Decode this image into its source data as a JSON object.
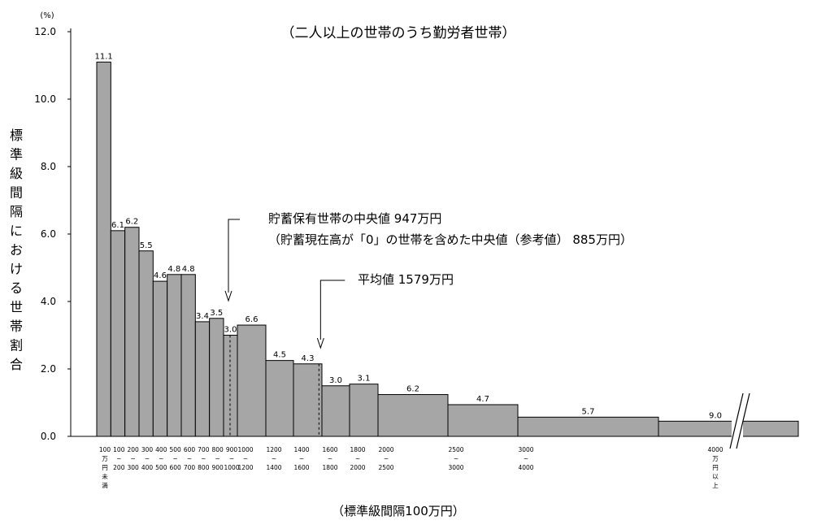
{
  "chart_data": {
    "type": "bar",
    "title": "（二人以上の世帯のうち勤労者世帯）",
    "ylabel": "標準級間隔における世帯割合",
    "yunit": "(%)",
    "xlabel": "（標準級間隔100万円）",
    "ylim": [
      0,
      12
    ],
    "yticks": [
      "0.0",
      "2.0",
      "4.0",
      "6.0",
      "8.0",
      "10.0",
      "12.0"
    ],
    "grid": false,
    "bars": [
      {
        "from": 0,
        "to": 100,
        "value": 11.1,
        "label": "11.1",
        "tick": [
          "100",
          "万",
          "円",
          "未",
          "満"
        ]
      },
      {
        "from": 100,
        "to": 200,
        "value": 6.1,
        "label": "6.1",
        "tick": [
          "100",
          "~",
          "200"
        ]
      },
      {
        "from": 200,
        "to": 300,
        "value": 6.2,
        "label": "6.2",
        "tick": [
          "200",
          "~",
          "300"
        ]
      },
      {
        "from": 300,
        "to": 400,
        "value": 5.5,
        "label": "5.5",
        "tick": [
          "300",
          "~",
          "400"
        ]
      },
      {
        "from": 400,
        "to": 500,
        "value": 4.6,
        "label": "4.6",
        "tick": [
          "400",
          "~",
          "500"
        ]
      },
      {
        "from": 500,
        "to": 600,
        "value": 4.8,
        "label": "4.8",
        "tick": [
          "500",
          "~",
          "600"
        ]
      },
      {
        "from": 600,
        "to": 700,
        "value": 4.8,
        "label": "4.8",
        "tick": [
          "600",
          "~",
          "700"
        ]
      },
      {
        "from": 700,
        "to": 800,
        "value": 3.4,
        "label": "3.4",
        "tick": [
          "700",
          "~",
          "800"
        ]
      },
      {
        "from": 800,
        "to": 900,
        "value": 3.5,
        "label": "3.5",
        "tick": [
          "800",
          "~",
          "900"
        ]
      },
      {
        "from": 900,
        "to": 1000,
        "value": 3.0,
        "label": "3.0",
        "tick": [
          "900",
          "~",
          "1000"
        ]
      },
      {
        "from": 1000,
        "to": 1200,
        "value": 3.3,
        "label": "6.6",
        "tick": [
          "1000",
          "~",
          "1200"
        ]
      },
      {
        "from": 1200,
        "to": 1400,
        "value": 2.25,
        "label": "4.5",
        "tick": [
          "1200",
          "~",
          "1400"
        ]
      },
      {
        "from": 1400,
        "to": 1600,
        "value": 2.15,
        "label": "4.3",
        "tick": [
          "1400",
          "~",
          "1600"
        ]
      },
      {
        "from": 1600,
        "to": 1800,
        "value": 1.5,
        "label": "3.0",
        "tick": [
          "1600",
          "~",
          "1800"
        ]
      },
      {
        "from": 1800,
        "to": 2000,
        "value": 1.55,
        "label": "3.1",
        "tick": [
          "1800",
          "~",
          "2000"
        ]
      },
      {
        "from": 2000,
        "to": 2500,
        "value": 1.24,
        "label": "6.2",
        "tick": [
          "2000",
          "~",
          "2500"
        ]
      },
      {
        "from": 2500,
        "to": 3000,
        "value": 0.94,
        "label": "4.7",
        "tick": [
          "2500",
          "~",
          "3000"
        ]
      },
      {
        "from": 3000,
        "to": 4000,
        "value": 0.57,
        "label": "5.7",
        "tick": [
          "3000",
          "~",
          "4000"
        ]
      },
      {
        "from": 4000,
        "to": null,
        "value": 0.45,
        "label": "9.0",
        "tick": [
          "4000",
          "万",
          "円",
          "以",
          "上"
        ],
        "broken": true
      }
    ],
    "annotations": [
      {
        "lines": [
          "貯蓄保有世帯の中央値 947万円",
          "（貯蓄現在高が「0」の世帯を含めた中央値（参考値） 885万円）"
        ],
        "value": 947
      },
      {
        "lines": [
          "平均値 1579万円"
        ],
        "value": 1579
      }
    ]
  }
}
